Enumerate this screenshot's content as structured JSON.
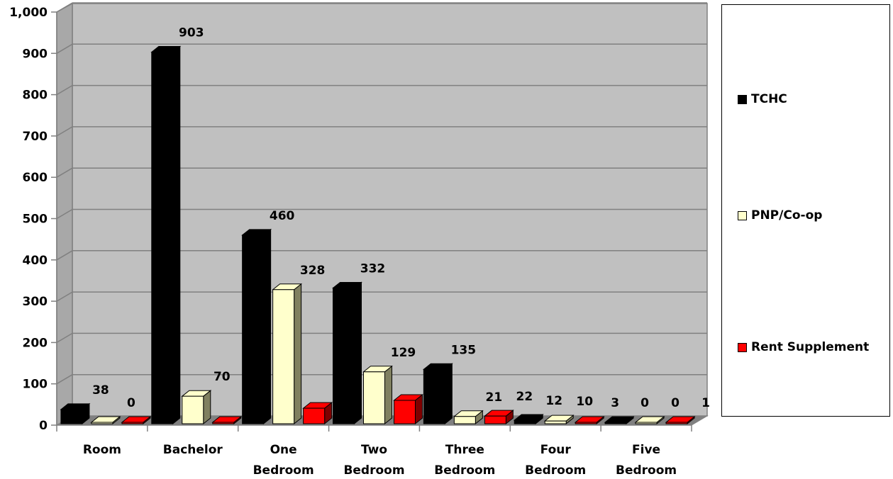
{
  "chart_data": {
    "type": "bar",
    "categories": [
      [
        "Room"
      ],
      [
        "Bachelor"
      ],
      [
        "One",
        "Bedroom"
      ],
      [
        "Two",
        "Bedroom"
      ],
      [
        "Three",
        "Bedroom"
      ],
      [
        "Four",
        "Bedroom"
      ],
      [
        "Five",
        "Bedroom"
      ]
    ],
    "series": [
      {
        "name": "TCHC",
        "color": "#000000",
        "values": [
          38,
          903,
          460,
          332,
          135,
          12,
          0
        ]
      },
      {
        "name": "PNP/Co-op",
        "color": "#FFFFCC",
        "values": [
          0,
          70,
          328,
          129,
          21,
          10,
          0
        ]
      },
      {
        "name": "Rent Supplement",
        "color": "#FF0000",
        "values": [
          0,
          0,
          41,
          60,
          22,
          3,
          1
        ]
      }
    ],
    "ylim": [
      0,
      1000
    ],
    "yticks": [
      0,
      100,
      200,
      300,
      400,
      500,
      600,
      700,
      800,
      900,
      1000
    ],
    "ytick_labels": [
      "0",
      "100",
      "200",
      "300",
      "400",
      "500",
      "600",
      "700",
      "800",
      "900",
      "1,000"
    ],
    "grid": true,
    "legend_position": "right",
    "style": "3d-clustered-column"
  }
}
